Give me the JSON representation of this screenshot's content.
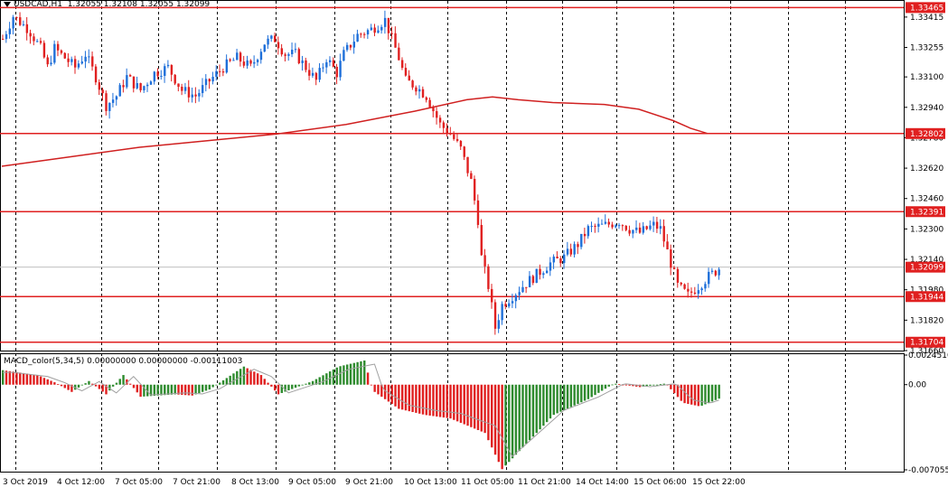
{
  "header": {
    "symbol": "USDCAD,H1",
    "ohlc": "1.32055 1.32108 1.32055 1.32099"
  },
  "indicator": {
    "label": "MACD_color(5,34,5) 0.00000000 0.00000000 -0.00111003"
  },
  "colors": {
    "bull": "#1e6fd9",
    "bear": "#e02020",
    "level_line": "#e02020",
    "ma_line": "#d02020",
    "hist_up": "#2e8b2e",
    "hist_down": "#e02020",
    "signal": "#a0a0a0",
    "grid": "#000000",
    "price_tag": "#e02020",
    "current_tag": "#e02020"
  },
  "chart_data": {
    "type": "candlestick",
    "price_axis": {
      "range": [
        1.3166,
        1.335
      ],
      "ticks": [
        "1.33415",
        "1.33255",
        "1.33100",
        "1.32940",
        "1.32780",
        "1.32620",
        "1.32460",
        "1.32300",
        "1.32140",
        "1.31980",
        "1.31820",
        "1.31660"
      ]
    },
    "levels": [
      {
        "price": 1.33465,
        "label": "1.33465"
      },
      {
        "price": 1.32802,
        "label": "1.32802"
      },
      {
        "price": 1.32391,
        "label": "1.32391"
      },
      {
        "price": 1.31944,
        "label": "1.31944"
      },
      {
        "price": 1.31704,
        "label": "1.31704"
      }
    ],
    "current_price": {
      "price": 1.32099,
      "label": "1.32099"
    },
    "time_axis": {
      "labels": [
        "3 Oct 2019",
        "4 Oct 12:00",
        "7 Oct 05:00",
        "7 Oct 21:00",
        "8 Oct 13:00",
        "9 Oct 05:00",
        "9 Oct 21:00",
        "10 Oct 13:00",
        "11 Oct 05:00",
        "11 Oct 21:00",
        "14 Oct 14:00",
        "15 Oct 06:00",
        "15 Oct 22:00"
      ]
    },
    "candle_count": 197,
    "path_points": [
      [
        0,
        1.333
      ],
      [
        6,
        1.3342
      ],
      [
        15,
        1.3335
      ],
      [
        22,
        1.3325
      ],
      [
        26,
        1.3315
      ],
      [
        30,
        1.3325
      ],
      [
        36,
        1.332
      ],
      [
        42,
        1.3315
      ],
      [
        48,
        1.3322
      ],
      [
        54,
        1.331
      ],
      [
        60,
        1.3295
      ],
      [
        66,
        1.33
      ],
      [
        72,
        1.331
      ],
      [
        80,
        1.3303
      ],
      [
        88,
        1.3312
      ],
      [
        96,
        1.3315
      ],
      [
        104,
        1.3303
      ],
      [
        112,
        1.33
      ],
      [
        120,
        1.3308
      ],
      [
        128,
        1.3315
      ],
      [
        136,
        1.332
      ],
      [
        144,
        1.3315
      ],
      [
        152,
        1.3328
      ],
      [
        158,
        1.333
      ],
      [
        164,
        1.3322
      ],
      [
        170,
        1.3322
      ],
      [
        176,
        1.3315
      ],
      [
        182,
        1.3308
      ],
      [
        188,
        1.332
      ],
      [
        194,
        1.3312
      ],
      [
        198,
        1.3322
      ],
      [
        206,
        1.3332
      ],
      [
        214,
        1.3335
      ],
      [
        222,
        1.334
      ],
      [
        226,
        1.333
      ],
      [
        230,
        1.332
      ],
      [
        234,
        1.3308
      ],
      [
        240,
        1.3305
      ],
      [
        246,
        1.33
      ],
      [
        254,
        1.3285
      ],
      [
        260,
        1.328
      ],
      [
        266,
        1.3272
      ],
      [
        272,
        1.3255
      ],
      [
        276,
        1.3235
      ],
      [
        278,
        1.3215
      ],
      [
        282,
        1.32
      ],
      [
        286,
        1.3178
      ],
      [
        290,
        1.319
      ],
      [
        296,
        1.3195
      ],
      [
        302,
        1.32
      ],
      [
        310,
        1.3206
      ],
      [
        318,
        1.3212
      ],
      [
        326,
        1.3215
      ],
      [
        334,
        1.3222
      ],
      [
        340,
        1.323
      ],
      [
        350,
        1.3232
      ],
      [
        358,
        1.3234
      ],
      [
        364,
        1.323
      ],
      [
        370,
        1.3228
      ],
      [
        378,
        1.3232
      ],
      [
        382,
        1.323
      ],
      [
        388,
        1.3212
      ],
      [
        392,
        1.32
      ],
      [
        398,
        1.3195
      ],
      [
        404,
        1.32
      ],
      [
        410,
        1.3205
      ],
      [
        417,
        1.321
      ]
    ],
    "moving_average": [
      [
        0,
        1.3263
      ],
      [
        40,
        1.3268
      ],
      [
        80,
        1.3273
      ],
      [
        120,
        1.32765
      ],
      [
        160,
        1.328
      ],
      [
        200,
        1.3285
      ],
      [
        240,
        1.3292
      ],
      [
        270,
        1.3298
      ],
      [
        285,
        1.32995
      ],
      [
        300,
        1.3298
      ],
      [
        320,
        1.32965
      ],
      [
        350,
        1.32955
      ],
      [
        370,
        1.3293
      ],
      [
        390,
        1.3287
      ],
      [
        400,
        1.3283
      ],
      [
        410,
        1.32802
      ]
    ],
    "macd": {
      "range": [
        -0.007055,
        0.002451
      ],
      "ticks": [
        "0.0024510",
        "0.00",
        "-0.007055"
      ],
      "hist_points": [
        [
          0,
          0.0012
        ],
        [
          20,
          0.0008
        ],
        [
          30,
          0.0002
        ],
        [
          40,
          -0.0006
        ],
        [
          50,
          0.0003
        ],
        [
          60,
          -0.0008
        ],
        [
          70,
          0.0008
        ],
        [
          80,
          -0.001
        ],
        [
          100,
          -0.0008
        ],
        [
          110,
          -0.0009
        ],
        [
          120,
          -0.0004
        ],
        [
          140,
          0.0015
        ],
        [
          150,
          0.0008
        ],
        [
          160,
          -0.0008
        ],
        [
          180,
          0.0003
        ],
        [
          195,
          0.0015
        ],
        [
          210,
          0.002
        ],
        [
          215,
          -0.0005
        ],
        [
          230,
          -0.002
        ],
        [
          245,
          -0.0025
        ],
        [
          260,
          -0.0028
        ],
        [
          280,
          -0.004
        ],
        [
          290,
          -0.007
        ],
        [
          300,
          -0.0055
        ],
        [
          310,
          -0.004
        ],
        [
          320,
          -0.0025
        ],
        [
          340,
          -0.0012
        ],
        [
          355,
          0.0001
        ],
        [
          370,
          -0.0002
        ],
        [
          385,
          0.0001
        ],
        [
          395,
          -0.0015
        ],
        [
          405,
          -0.0018
        ],
        [
          417,
          -0.0011
        ]
      ]
    }
  }
}
